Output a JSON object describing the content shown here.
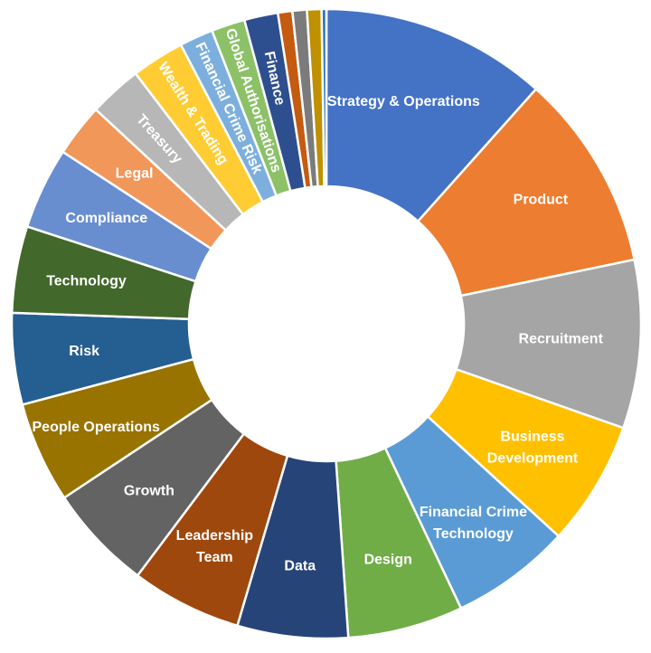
{
  "chart_data": {
    "type": "donut",
    "legend": "none",
    "slices": [
      {
        "label": "Strategy & Operations",
        "value": 47,
        "color": "#4472C4"
      },
      {
        "label": "Product",
        "value": 41,
        "color": "#ED7D31"
      },
      {
        "label": "Recruitment",
        "value": 35,
        "color": "#A5A5A5"
      },
      {
        "label": "Business Development",
        "value": 26,
        "color": "#FFC000"
      },
      {
        "label": "Financial Crime Technology",
        "value": 25,
        "color": "#5B9BD5"
      },
      {
        "label": "Design",
        "value": 24,
        "color": "#70AD47"
      },
      {
        "label": "Data",
        "value": 23,
        "color": "#264478"
      },
      {
        "label": "Leadership Team",
        "value": 23,
        "color": "#9E480E"
      },
      {
        "label": "Growth",
        "value": 22,
        "color": "#636363"
      },
      {
        "label": "People Operations",
        "value": 21,
        "color": "#997300"
      },
      {
        "label": "Risk",
        "value": 19,
        "color": "#255E91"
      },
      {
        "label": "Technology",
        "value": 18,
        "color": "#43682B"
      },
      {
        "label": "Compliance",
        "value": 17,
        "color": "#698ED0"
      },
      {
        "label": "Legal",
        "value": 11,
        "color": "#F1975A"
      },
      {
        "label": "Treasury",
        "value": 11,
        "color": "#B7B7B7"
      },
      {
        "label": "Wealth & Trading",
        "value": 11,
        "color": "#FFCD33"
      },
      {
        "label": "Financial Crime Risk",
        "value": 7,
        "color": "#7CAFDD"
      },
      {
        "label": "Global Authorisations",
        "value": 7,
        "color": "#8CC168"
      },
      {
        "label": "Finance",
        "value": 7,
        "color": "#2E4F8F"
      },
      {
        "label": "",
        "value": 3,
        "color": "#C55A11"
      },
      {
        "label": "",
        "value": 3,
        "color": "#7B7B7B"
      },
      {
        "label": "",
        "value": 3,
        "color": "#BF9000"
      },
      {
        "label": "",
        "value": 1,
        "color": "#2E75B6"
      }
    ]
  }
}
